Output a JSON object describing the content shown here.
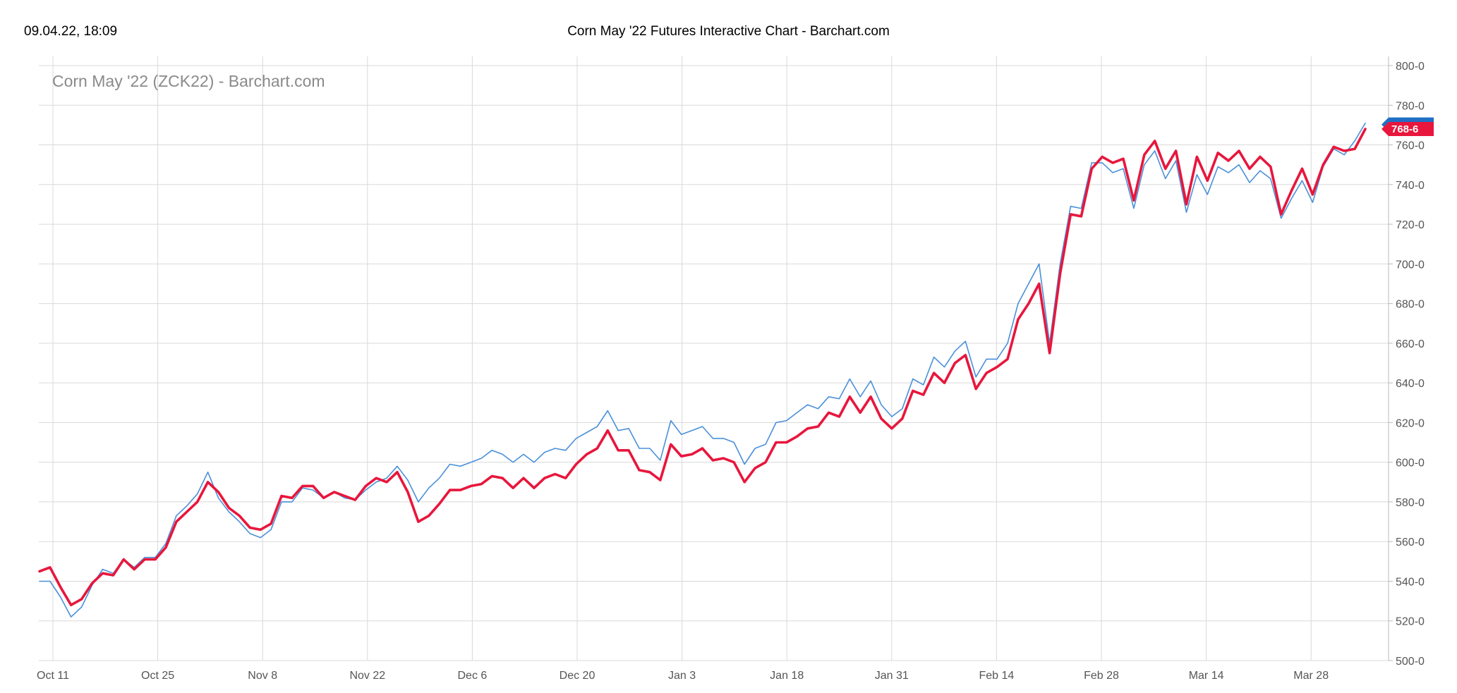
{
  "header": {
    "date": "09.04.22, 18:09",
    "title": "Corn May '22 Futures Interactive Chart - Barchart.com"
  },
  "colors": {
    "price_line": "#e8163c",
    "compare_line": "#4a90d9",
    "badge_blue": "#1f6fc5",
    "badge_red": "#e8163c",
    "grid": "#d9d9d9"
  },
  "chart_data": {
    "type": "line",
    "title": "Corn May '22 (ZCK22) - Barchart.com",
    "xlabel": "",
    "ylabel": "",
    "ylim": [
      500,
      800
    ],
    "yticks": [
      "800-0",
      "780-0",
      "760-0",
      "740-0",
      "720-0",
      "700-0",
      "680-0",
      "660-0",
      "640-0",
      "620-0",
      "600-0",
      "580-0",
      "560-0",
      "540-0",
      "520-0",
      "500-0"
    ],
    "xticks": [
      "Oct 11",
      "Oct 25",
      "Nov 8",
      "Nov 22",
      "Dec 6",
      "Dec 20",
      "Jan 3",
      "Jan 18",
      "Jan 31",
      "Feb 14",
      "Feb 28",
      "Mar 14",
      "Mar 28"
    ],
    "grid": true,
    "last_price_label": "768-6",
    "series": [
      {
        "role": "price",
        "values": [
          545,
          547,
          537,
          528,
          531,
          539,
          544,
          543,
          551,
          546,
          551,
          551,
          557,
          570,
          575,
          580,
          590,
          585,
          577,
          573,
          567,
          566,
          569,
          583,
          582,
          588,
          588,
          582,
          585,
          583,
          581,
          588,
          592,
          590,
          595,
          585,
          570,
          573,
          579,
          586,
          586,
          588,
          589,
          593,
          592,
          587,
          592,
          587,
          592,
          594,
          592,
          599,
          604,
          607,
          616,
          606,
          606,
          596,
          595,
          591,
          609,
          603,
          604,
          607,
          601,
          602,
          600,
          590,
          597,
          600,
          610,
          610,
          613,
          617,
          618,
          625,
          623,
          633,
          625,
          633,
          622,
          617,
          622,
          636,
          634,
          645,
          640,
          650,
          654,
          637,
          645,
          648,
          652,
          672,
          680,
          690,
          655,
          695,
          725,
          724,
          748,
          754,
          751,
          753,
          732,
          755,
          762,
          748,
          757,
          730,
          754,
          742,
          756,
          752,
          757,
          748,
          754,
          749,
          725,
          737,
          748,
          735,
          750,
          759,
          757,
          758,
          768
        ]
      },
      {
        "role": "compare",
        "values": [
          540,
          540,
          532,
          522,
          527,
          538,
          546,
          544,
          551,
          547,
          552,
          552,
          559,
          573,
          578,
          584,
          595,
          582,
          575,
          570,
          564,
          562,
          566,
          580,
          580,
          587,
          586,
          582,
          585,
          582,
          581,
          586,
          590,
          592,
          598,
          591,
          580,
          587,
          592,
          599,
          598,
          600,
          602,
          606,
          604,
          600,
          604,
          600,
          605,
          607,
          606,
          612,
          615,
          618,
          626,
          616,
          617,
          607,
          607,
          601,
          621,
          614,
          616,
          618,
          612,
          612,
          610,
          599,
          607,
          609,
          620,
          621,
          625,
          629,
          627,
          633,
          632,
          642,
          633,
          641,
          629,
          623,
          627,
          642,
          639,
          653,
          648,
          656,
          661,
          643,
          652,
          652,
          660,
          680,
          690,
          700,
          660,
          700,
          729,
          728,
          751,
          751,
          746,
          748,
          728,
          750,
          757,
          743,
          752,
          726,
          745,
          735,
          749,
          746,
          750,
          741,
          747,
          743,
          723,
          733,
          742,
          731,
          749,
          758,
          755,
          762,
          771
        ]
      }
    ]
  }
}
